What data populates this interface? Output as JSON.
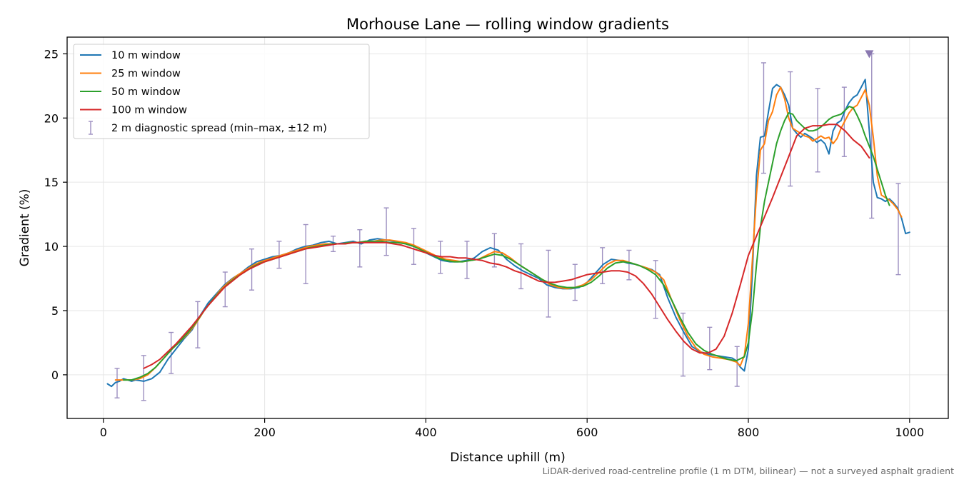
{
  "chart_data": {
    "type": "line",
    "title": "Morhouse Lane — rolling window gradients",
    "xlabel": "Distance uphill (m)",
    "ylabel": "Gradient (%)",
    "footnote": "LiDAR-derived road-centreline profile (1 m DTM, bilinear) — not a surveyed asphalt gradient",
    "xlim": [
      -45,
      1048
    ],
    "ylim": [
      -3.4,
      26.3
    ],
    "xticks": [
      0,
      200,
      400,
      600,
      800,
      1000
    ],
    "yticks": [
      0,
      5,
      10,
      15,
      20,
      25
    ],
    "grid": true,
    "legend_position": "top-left",
    "series": [
      {
        "name": "10 m window",
        "color": "#1f77b4",
        "x": [
          5,
          10,
          15,
          20,
          25,
          30,
          35,
          40,
          50,
          60,
          70,
          80,
          90,
          100,
          110,
          120,
          130,
          140,
          150,
          160,
          170,
          180,
          190,
          200,
          210,
          220,
          230,
          240,
          250,
          260,
          270,
          280,
          290,
          300,
          310,
          320,
          330,
          340,
          350,
          360,
          370,
          380,
          390,
          400,
          410,
          420,
          430,
          440,
          450,
          460,
          470,
          480,
          490,
          500,
          510,
          520,
          530,
          540,
          550,
          560,
          570,
          580,
          590,
          600,
          610,
          620,
          630,
          640,
          650,
          660,
          670,
          680,
          690,
          700,
          710,
          720,
          730,
          740,
          750,
          760,
          770,
          780,
          785,
          790,
          795,
          800,
          805,
          810,
          815,
          820,
          825,
          830,
          835,
          840,
          845,
          850,
          855,
          860,
          865,
          870,
          875,
          880,
          885,
          890,
          895,
          900,
          905,
          910,
          915,
          920,
          925,
          930,
          935,
          940,
          945,
          950,
          955,
          960,
          965,
          970,
          975,
          980,
          985,
          990,
          995,
          1000
        ],
        "values": [
          -0.7,
          -0.9,
          -0.6,
          -0.5,
          -0.3,
          -0.4,
          -0.5,
          -0.4,
          -0.5,
          -0.3,
          0.2,
          1.2,
          2.0,
          2.8,
          3.5,
          4.6,
          5.6,
          6.3,
          7.0,
          7.5,
          7.9,
          8.4,
          8.8,
          9.0,
          9.2,
          9.3,
          9.5,
          9.8,
          10.0,
          10.1,
          10.3,
          10.4,
          10.2,
          10.3,
          10.4,
          10.2,
          10.5,
          10.6,
          10.5,
          10.4,
          10.3,
          10.1,
          9.9,
          9.5,
          9.2,
          8.9,
          8.8,
          8.8,
          8.9,
          9.1,
          9.6,
          9.9,
          9.7,
          9.0,
          8.5,
          8.1,
          7.8,
          7.5,
          7.0,
          6.8,
          6.7,
          6.7,
          6.8,
          7.2,
          7.9,
          8.6,
          9.0,
          8.9,
          8.7,
          8.6,
          8.4,
          8.2,
          7.8,
          6.0,
          4.5,
          3.3,
          2.2,
          1.8,
          1.6,
          1.5,
          1.4,
          1.3,
          1.1,
          0.6,
          0.3,
          2.0,
          8.0,
          15.5,
          18.5,
          18.6,
          20.5,
          22.3,
          22.6,
          22.4,
          21.8,
          21.0,
          19.2,
          18.8,
          18.5,
          18.8,
          18.6,
          18.4,
          18.1,
          18.3,
          18.0,
          17.2,
          19.0,
          19.6,
          19.8,
          20.6,
          21.2,
          21.6,
          21.8,
          22.4,
          23.0,
          19.0,
          15.0,
          13.8,
          13.7,
          13.5,
          13.7,
          13.4,
          13.0,
          12.2,
          11.0,
          11.1
        ]
      },
      {
        "name": "25 m window",
        "color": "#ff7f0e",
        "x": [
          15,
          25,
          35,
          45,
          55,
          65,
          75,
          85,
          95,
          105,
          115,
          125,
          135,
          145,
          155,
          165,
          175,
          185,
          195,
          205,
          215,
          225,
          235,
          245,
          255,
          265,
          275,
          285,
          295,
          305,
          315,
          325,
          335,
          345,
          355,
          365,
          375,
          385,
          395,
          405,
          415,
          425,
          435,
          445,
          455,
          465,
          475,
          485,
          495,
          505,
          515,
          525,
          535,
          545,
          555,
          565,
          575,
          585,
          595,
          605,
          615,
          625,
          635,
          645,
          655,
          665,
          675,
          685,
          695,
          705,
          715,
          725,
          735,
          745,
          755,
          765,
          775,
          785,
          790,
          795,
          800,
          805,
          810,
          815,
          820,
          825,
          830,
          835,
          840,
          845,
          850,
          855,
          860,
          865,
          870,
          875,
          880,
          885,
          890,
          895,
          900,
          905,
          910,
          915,
          920,
          925,
          930,
          935,
          940,
          945,
          950,
          955,
          960,
          965,
          970,
          975,
          980,
          985,
          990
        ],
        "values": [
          -0.4,
          -0.4,
          -0.4,
          -0.3,
          0.0,
          0.6,
          1.3,
          2.0,
          2.6,
          3.2,
          4.0,
          5.0,
          5.8,
          6.6,
          7.2,
          7.7,
          8.1,
          8.5,
          8.8,
          9.0,
          9.2,
          9.4,
          9.6,
          9.8,
          10.0,
          10.1,
          10.2,
          10.2,
          10.2,
          10.3,
          10.3,
          10.4,
          10.4,
          10.5,
          10.5,
          10.4,
          10.3,
          10.1,
          9.8,
          9.5,
          9.2,
          9.0,
          8.9,
          8.8,
          8.9,
          9.0,
          9.3,
          9.6,
          9.5,
          9.1,
          8.6,
          8.2,
          7.8,
          7.4,
          7.0,
          6.8,
          6.7,
          6.8,
          7.0,
          7.4,
          8.0,
          8.6,
          8.9,
          8.9,
          8.7,
          8.5,
          8.3,
          8.0,
          7.4,
          5.8,
          4.3,
          3.0,
          2.1,
          1.6,
          1.4,
          1.3,
          1.2,
          1.0,
          0.7,
          1.5,
          4.0,
          9.0,
          14.0,
          17.5,
          18.0,
          19.8,
          20.5,
          21.8,
          22.4,
          21.5,
          20.0,
          19.2,
          19.0,
          18.8,
          18.6,
          18.5,
          18.2,
          18.4,
          18.6,
          18.4,
          18.5,
          18.0,
          18.4,
          19.2,
          19.8,
          20.4,
          20.8,
          21.0,
          21.6,
          22.2,
          21.0,
          18.5,
          15.5,
          14.0,
          13.8,
          13.6,
          13.3,
          12.9,
          12.3
        ]
      },
      {
        "name": "50 m window",
        "color": "#2ca02c",
        "x": [
          25,
          35,
          45,
          55,
          65,
          75,
          85,
          95,
          105,
          115,
          125,
          135,
          145,
          155,
          165,
          175,
          185,
          195,
          205,
          215,
          225,
          235,
          245,
          255,
          265,
          275,
          285,
          295,
          305,
          315,
          325,
          335,
          345,
          355,
          365,
          375,
          385,
          395,
          405,
          415,
          425,
          435,
          445,
          455,
          465,
          475,
          485,
          495,
          505,
          515,
          525,
          535,
          545,
          555,
          565,
          575,
          585,
          595,
          605,
          615,
          625,
          635,
          645,
          655,
          665,
          675,
          685,
          695,
          705,
          715,
          725,
          735,
          745,
          755,
          765,
          775,
          785,
          795,
          800,
          805,
          810,
          815,
          820,
          825,
          830,
          835,
          840,
          845,
          850,
          855,
          860,
          865,
          870,
          875,
          880,
          885,
          890,
          895,
          900,
          905,
          910,
          915,
          920,
          925,
          930,
          935,
          940,
          945,
          950,
          955,
          960,
          965,
          970,
          975
        ],
        "values": [
          -0.4,
          -0.4,
          -0.2,
          0.1,
          0.6,
          1.3,
          2.0,
          2.6,
          3.3,
          4.1,
          5.0,
          5.8,
          6.5,
          7.1,
          7.6,
          8.0,
          8.4,
          8.7,
          8.9,
          9.1,
          9.3,
          9.5,
          9.7,
          9.9,
          10.0,
          10.1,
          10.2,
          10.2,
          10.3,
          10.3,
          10.4,
          10.4,
          10.4,
          10.3,
          10.3,
          10.2,
          10.0,
          9.7,
          9.4,
          9.1,
          8.9,
          8.8,
          8.8,
          8.9,
          9.0,
          9.2,
          9.4,
          9.3,
          9.0,
          8.6,
          8.2,
          7.8,
          7.4,
          7.1,
          6.9,
          6.8,
          6.8,
          6.9,
          7.2,
          7.7,
          8.3,
          8.7,
          8.8,
          8.7,
          8.5,
          8.2,
          7.8,
          7.0,
          5.8,
          4.5,
          3.3,
          2.4,
          1.9,
          1.6,
          1.4,
          1.2,
          1.1,
          1.4,
          2.5,
          5.0,
          8.5,
          11.5,
          13.5,
          15.0,
          16.5,
          18.0,
          19.0,
          19.8,
          20.4,
          20.3,
          19.8,
          19.5,
          19.2,
          19.0,
          19.0,
          19.1,
          19.3,
          19.6,
          19.9,
          20.1,
          20.2,
          20.3,
          20.6,
          20.9,
          20.8,
          20.2,
          19.5,
          18.6,
          17.8,
          17.0,
          16.0,
          15.0,
          14.0,
          13.2
        ]
      },
      {
        "name": "100 m window",
        "color": "#d62728",
        "x": [
          50,
          60,
          70,
          80,
          90,
          100,
          110,
          120,
          130,
          140,
          150,
          160,
          170,
          180,
          190,
          200,
          210,
          220,
          230,
          240,
          250,
          260,
          270,
          280,
          290,
          300,
          310,
          320,
          330,
          340,
          350,
          360,
          370,
          380,
          390,
          400,
          410,
          420,
          430,
          440,
          450,
          460,
          470,
          480,
          490,
          500,
          510,
          520,
          530,
          540,
          550,
          560,
          570,
          580,
          590,
          600,
          610,
          620,
          630,
          640,
          650,
          660,
          670,
          680,
          690,
          700,
          710,
          720,
          730,
          740,
          750,
          760,
          770,
          780,
          790,
          800,
          810,
          820,
          830,
          840,
          850,
          860,
          870,
          880,
          890,
          900,
          910,
          920,
          930,
          940,
          950
        ],
        "values": [
          0.5,
          0.8,
          1.2,
          1.8,
          2.4,
          3.1,
          3.8,
          4.6,
          5.4,
          6.1,
          6.8,
          7.3,
          7.8,
          8.2,
          8.5,
          8.8,
          9.0,
          9.2,
          9.4,
          9.6,
          9.8,
          9.9,
          10.0,
          10.1,
          10.2,
          10.2,
          10.3,
          10.3,
          10.3,
          10.3,
          10.3,
          10.2,
          10.1,
          9.9,
          9.7,
          9.5,
          9.3,
          9.2,
          9.2,
          9.1,
          9.1,
          9.0,
          8.9,
          8.7,
          8.6,
          8.4,
          8.1,
          7.9,
          7.6,
          7.3,
          7.2,
          7.2,
          7.3,
          7.4,
          7.6,
          7.8,
          7.9,
          8.0,
          8.1,
          8.1,
          8.0,
          7.7,
          7.1,
          6.3,
          5.3,
          4.3,
          3.4,
          2.6,
          2.0,
          1.7,
          1.7,
          2.0,
          3.0,
          4.8,
          7.0,
          9.3,
          10.8,
          12.3,
          13.8,
          15.4,
          17.0,
          18.6,
          19.2,
          19.4,
          19.4,
          19.5,
          19.5,
          19.0,
          18.3,
          17.8,
          16.9
        ]
      },
      {
        "name": "2 m diagnostic spread (min–max, ±12 m)",
        "type": "errorbar",
        "color": "#9c8fc0",
        "x": [
          17,
          50,
          84,
          117,
          151,
          184,
          218,
          251,
          285,
          318,
          351,
          385,
          418,
          451,
          485,
          518,
          552,
          585,
          619,
          652,
          685,
          719,
          752,
          786,
          819,
          852,
          886,
          919,
          953,
          986
        ],
        "low": [
          -1.8,
          -2.0,
          0.1,
          2.1,
          5.3,
          6.6,
          8.3,
          7.1,
          9.6,
          8.4,
          9.3,
          8.6,
          7.9,
          7.5,
          8.4,
          6.7,
          4.5,
          5.8,
          7.1,
          7.4,
          4.4,
          -0.1,
          0.4,
          -0.9,
          15.7,
          14.7,
          15.8,
          17.0,
          12.2,
          7.8
        ],
        "high": [
          0.5,
          1.5,
          3.3,
          5.7,
          8.0,
          9.8,
          10.4,
          11.7,
          10.8,
          11.3,
          13.0,
          11.4,
          10.4,
          10.4,
          11.0,
          10.2,
          9.7,
          8.6,
          9.9,
          9.7,
          8.9,
          4.8,
          3.7,
          2.2,
          24.3,
          23.6,
          22.3,
          22.4,
          25.0,
          14.9
        ]
      }
    ],
    "annotations": [
      {
        "type": "marker",
        "shape": "down-triangle",
        "x": 950,
        "y": 25.0,
        "color": "#8a78b0"
      }
    ]
  }
}
